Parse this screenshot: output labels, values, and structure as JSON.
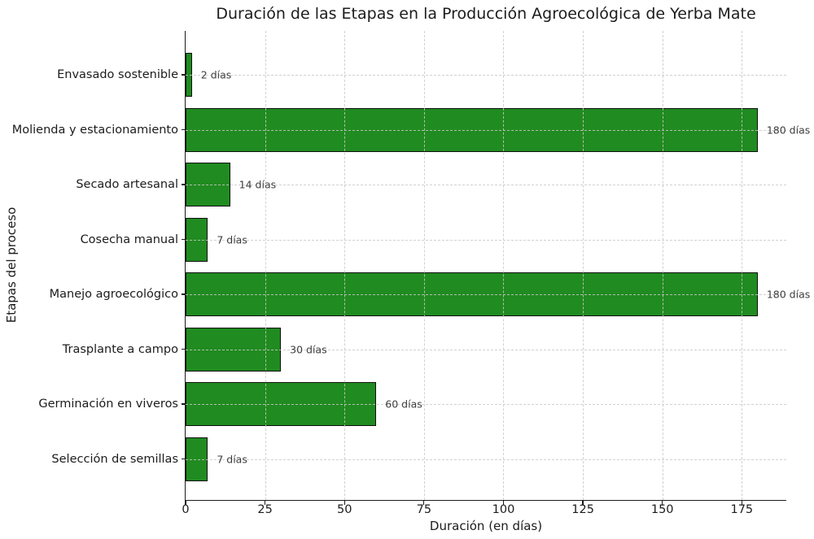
{
  "chart_data": {
    "type": "bar",
    "orientation": "horizontal",
    "title": "Duración de las Etapas en la Producción Agroecológica de Yerba Mate",
    "xlabel": "Duración (en días)",
    "ylabel": "Etapas del proceso",
    "category_order": "bottom-to-top",
    "categories": [
      "Selección de semillas",
      "Germinación en viveros",
      "Trasplante a campo",
      "Manejo agroecológico",
      "Cosecha manual",
      "Secado artesanal",
      "Molienda y estacionamiento",
      "Envasado sostenible"
    ],
    "values": [
      7,
      60,
      30,
      180,
      7,
      14,
      180,
      2
    ],
    "value_labels": [
      "7 días",
      "60 días",
      "30 días",
      "180 días",
      "7 días",
      "14 días",
      "180 días",
      "2 días"
    ],
    "xticks": [
      0,
      25,
      50,
      75,
      100,
      125,
      150,
      175
    ],
    "xlim": [
      0,
      189
    ],
    "grid": true,
    "grid_style": "dashed",
    "grid_color": "#c9c9c9",
    "bar_color": "#208b20",
    "bar_edge_color": "#111111",
    "background_color": "#ffffff",
    "legend": false
  }
}
